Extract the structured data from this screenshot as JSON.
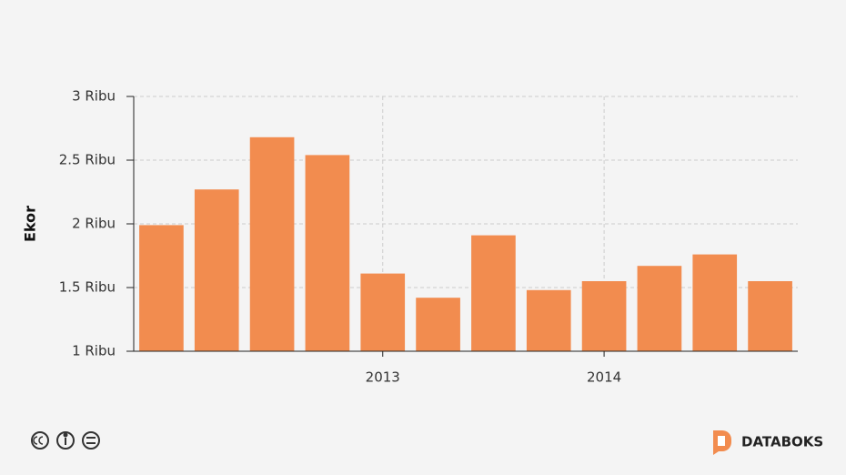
{
  "chart_data": {
    "type": "bar",
    "y_label": "Ekor",
    "categories": [
      null,
      null,
      null,
      null,
      "2013",
      null,
      null,
      null,
      "2014",
      null,
      null,
      null
    ],
    "values": [
      1.99,
      2.27,
      2.68,
      2.54,
      1.61,
      1.42,
      1.91,
      1.48,
      1.55,
      1.67,
      1.76,
      1.55
    ],
    "color": "#f28c4f",
    "ylim": [
      1,
      3
    ],
    "yticks": [
      {
        "value": 1,
        "label": "1 Ribu"
      },
      {
        "value": 1.5,
        "label": "1.5 Ribu"
      },
      {
        "value": 2,
        "label": "2 Ribu"
      },
      {
        "value": 2.5,
        "label": "2.5 Ribu"
      },
      {
        "value": 3,
        "label": "3 Ribu"
      }
    ],
    "grid": true
  },
  "brand": "DATABOKS"
}
